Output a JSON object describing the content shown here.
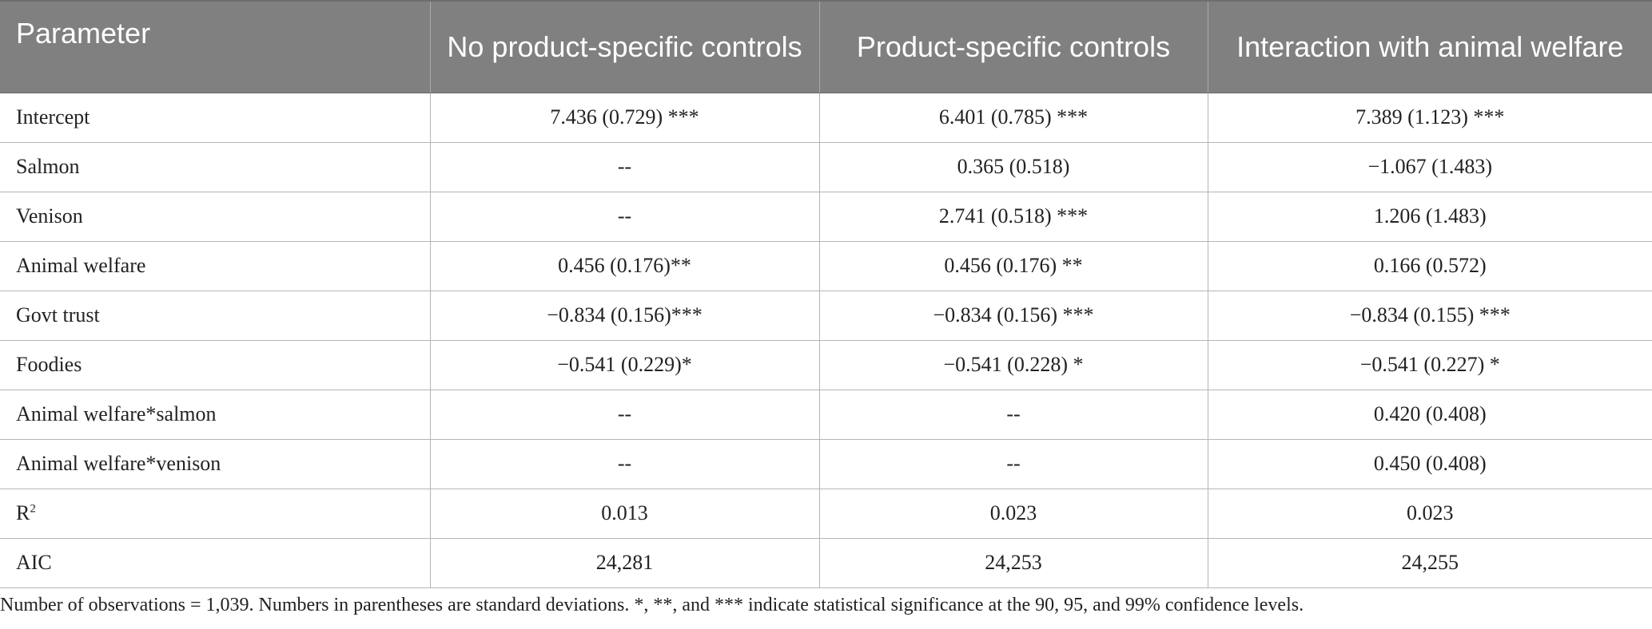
{
  "table": {
    "headers": [
      "Parameter",
      "No product-specific controls",
      "Product-specific controls",
      "Interaction with animal welfare"
    ],
    "rows": [
      {
        "parameter": "Intercept",
        "values": [
          "7.436 (0.729) ***",
          "6.401 (0.785) ***",
          "7.389 (1.123) ***"
        ]
      },
      {
        "parameter": "Salmon",
        "values": [
          "--",
          "0.365 (0.518)",
          "−1.067 (1.483)"
        ]
      },
      {
        "parameter": "Venison",
        "values": [
          "--",
          "2.741 (0.518) ***",
          "1.206 (1.483)"
        ]
      },
      {
        "parameter": "Animal welfare",
        "values": [
          "0.456 (0.176)**",
          "0.456 (0.176) **",
          "0.166 (0.572)"
        ]
      },
      {
        "parameter": "Govt trust",
        "values": [
          "−0.834 (0.156)***",
          "−0.834 (0.156) ***",
          "−0.834 (0.155) ***"
        ]
      },
      {
        "parameter": "Foodies",
        "values": [
          "−0.541 (0.229)*",
          "−0.541 (0.228) *",
          "−0.541 (0.227) *"
        ]
      },
      {
        "parameter": "Animal welfare*salmon",
        "values": [
          "--",
          "--",
          "0.420 (0.408)"
        ]
      },
      {
        "parameter": "Animal welfare*venison",
        "values": [
          "--",
          "--",
          "0.450 (0.408)"
        ]
      },
      {
        "parameter": "R",
        "parameter_sup": "2",
        "values": [
          "0.013",
          "0.023",
          "0.023"
        ]
      },
      {
        "parameter": "AIC",
        "values": [
          "24,281",
          "24,253",
          "24,255"
        ]
      }
    ]
  },
  "footnote": "Number of observations = 1,039. Numbers in parentheses are standard deviations. *, **, and *** indicate statistical significance at the 90, 95, and 99% confidence levels.",
  "colors": {
    "header_background": "#808080",
    "header_text": "#ffffff",
    "grid_line": "#b5b5b5"
  }
}
